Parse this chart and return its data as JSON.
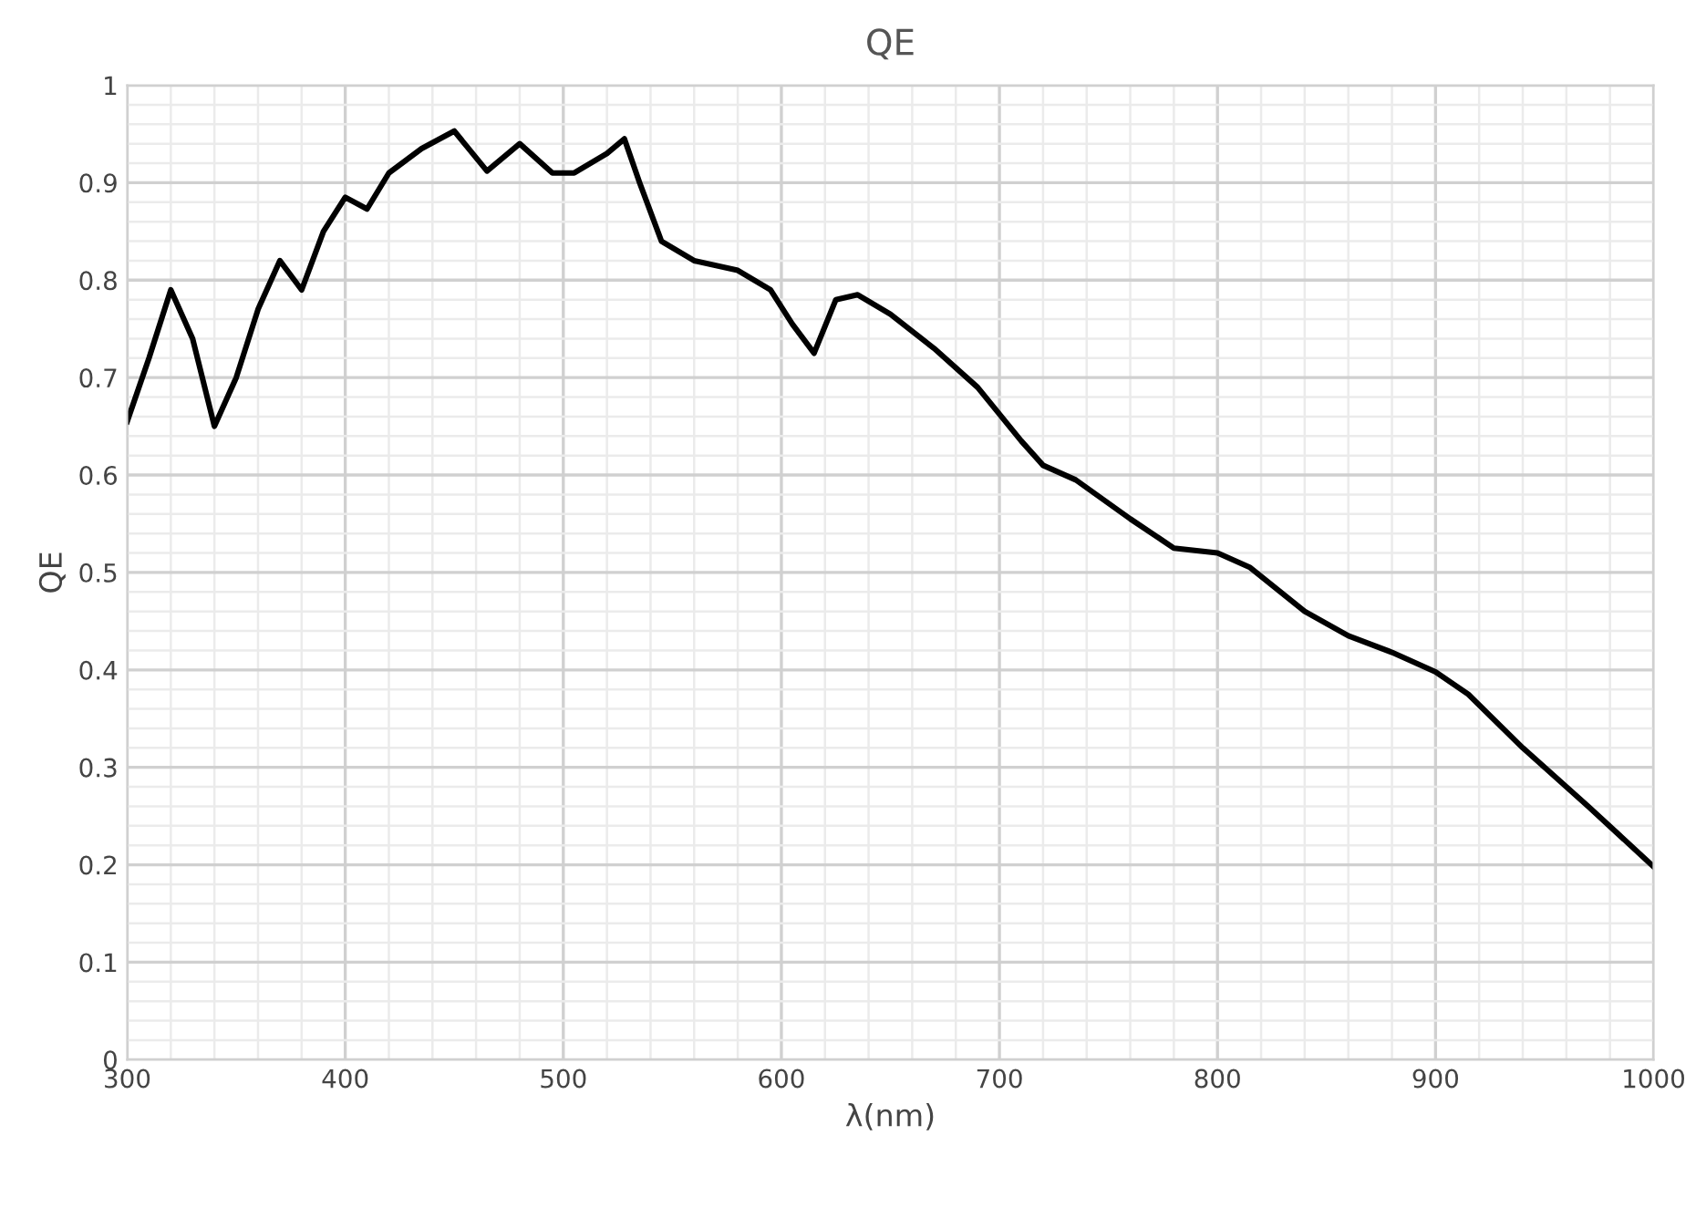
{
  "chart_data": {
    "type": "line",
    "title": "QE",
    "xlabel": "λ(nm)",
    "ylabel": "QE",
    "xlim": [
      300,
      1000
    ],
    "xticks": [
      300,
      400,
      500,
      600,
      700,
      800,
      900,
      1000
    ],
    "ylim": [
      0,
      1
    ],
    "yticks": [
      0,
      {
        "value": 0.1,
        "label": "0.1"
      },
      {
        "value": 0.2,
        "label": "0.2"
      },
      {
        "value": 0.3,
        "label": "0.3"
      },
      {
        "value": 0.4,
        "label": "0.4"
      },
      {
        "value": 0.5,
        "label": "0.5"
      },
      {
        "value": 0.6,
        "label": "0.6"
      },
      {
        "value": 0.7,
        "label": "0.7"
      },
      {
        "value": 0.8,
        "label": "0.8"
      },
      {
        "value": 0.9,
        "label": "0.9"
      },
      1
    ],
    "grid": true,
    "marker": "none",
    "line_style": "solid",
    "x": [
      300,
      310,
      320,
      330,
      340,
      350,
      360,
      370,
      380,
      390,
      400,
      410,
      420,
      435,
      450,
      465,
      480,
      495,
      505,
      520,
      528,
      535,
      545,
      560,
      580,
      595,
      605,
      615,
      625,
      635,
      650,
      670,
      690,
      710,
      720,
      735,
      760,
      780,
      800,
      815,
      840,
      860,
      880,
      900,
      915,
      940,
      970,
      1000
    ],
    "series": [
      {
        "color": "#000000",
        "values": [
          0.655,
          0.72,
          0.79,
          0.74,
          0.65,
          0.7,
          0.77,
          0.82,
          0.79,
          0.85,
          0.885,
          0.873,
          0.91,
          0.935,
          0.953,
          0.912,
          0.94,
          0.91,
          0.91,
          0.93,
          0.945,
          0.9,
          0.84,
          0.82,
          0.81,
          0.79,
          0.755,
          0.725,
          0.78,
          0.785,
          0.765,
          0.73,
          0.69,
          0.635,
          0.61,
          0.595,
          0.555,
          0.525,
          0.52,
          0.505,
          0.46,
          0.435,
          0.418,
          0.398,
          0.375,
          0.32,
          0.26,
          0.198
        ]
      }
    ]
  }
}
